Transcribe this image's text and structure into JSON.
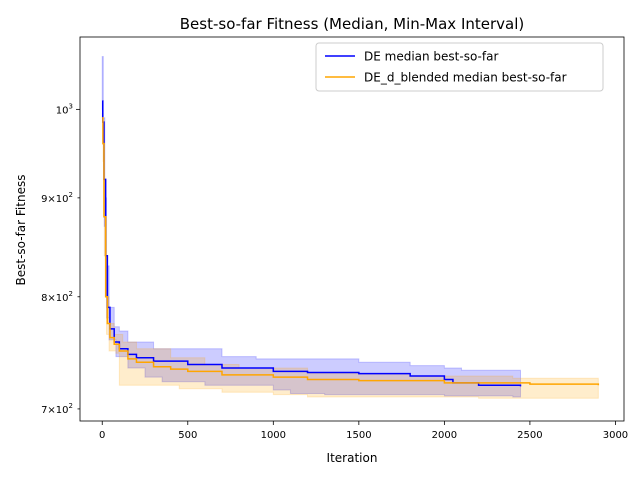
{
  "chart_data": {
    "type": "line",
    "title": "Best-so-far Fitness (Median, Min-Max Interval)",
    "xlabel": "Iteration",
    "ylabel": "Best-so-far Fitness",
    "xlim": [
      -130,
      3050
    ],
    "ylim": [
      690,
      1090
    ],
    "yscale": "log",
    "grid": false,
    "legend_position": "top-right",
    "x_ticks": [
      0,
      500,
      1000,
      1500,
      2000,
      2500,
      3000
    ],
    "x_tick_labels": [
      "0",
      "500",
      "1000",
      "1500",
      "2000",
      "2500",
      "3000"
    ],
    "y_ticks": [
      700,
      800,
      900,
      1000
    ],
    "y_tick_labels": [
      {
        "base": "7",
        "mid": "×",
        "pow": "10",
        "exp": "2"
      },
      {
        "base": "8",
        "mid": "×",
        "pow": "10",
        "exp": "2"
      },
      {
        "base": "9",
        "mid": "×",
        "pow": "10",
        "exp": "2"
      },
      {
        "base": "",
        "mid": "",
        "pow": "10",
        "exp": "3"
      }
    ],
    "series": [
      {
        "name": "DE median best-so-far",
        "color": "#0000ff",
        "fill": "#0000ff",
        "median": [
          [
            0,
            1010
          ],
          [
            3,
            985
          ],
          [
            10,
            920
          ],
          [
            20,
            840
          ],
          [
            30,
            790
          ],
          [
            45,
            770
          ],
          [
            70,
            758
          ],
          [
            100,
            752
          ],
          [
            150,
            747
          ],
          [
            200,
            744
          ],
          [
            300,
            741
          ],
          [
            500,
            738
          ],
          [
            700,
            735
          ],
          [
            1000,
            732
          ],
          [
            1200,
            731
          ],
          [
            1500,
            730
          ],
          [
            1800,
            728
          ],
          [
            2000,
            725
          ],
          [
            2050,
            722
          ],
          [
            2200,
            720
          ],
          [
            2445,
            719
          ]
        ],
        "upper": [
          [
            0,
            1065
          ],
          [
            5,
            1065
          ],
          [
            6,
            990
          ],
          [
            15,
            900
          ],
          [
            25,
            830
          ],
          [
            40,
            790
          ],
          [
            70,
            772
          ],
          [
            100,
            768
          ],
          [
            150,
            758
          ],
          [
            300,
            752
          ],
          [
            700,
            745
          ],
          [
            900,
            743
          ],
          [
            1500,
            740
          ],
          [
            1800,
            737
          ],
          [
            2000,
            735
          ],
          [
            2100,
            733
          ],
          [
            2445,
            733
          ]
        ],
        "lower": [
          [
            0,
            1000
          ],
          [
            5,
            960
          ],
          [
            12,
            870
          ],
          [
            25,
            780
          ],
          [
            40,
            760
          ],
          [
            80,
            745
          ],
          [
            150,
            735
          ],
          [
            250,
            727
          ],
          [
            350,
            723
          ],
          [
            600,
            720
          ],
          [
            1000,
            716
          ],
          [
            1100,
            713
          ],
          [
            1300,
            712
          ],
          [
            1600,
            712
          ],
          [
            2000,
            711
          ],
          [
            2400,
            710
          ],
          [
            2445,
            710
          ]
        ]
      },
      {
        "name": "DE_d_blended median best-so-far",
        "color": "#ffa500",
        "fill": "#ffa500",
        "median": [
          [
            0,
            990
          ],
          [
            4,
            960
          ],
          [
            10,
            880
          ],
          [
            20,
            800
          ],
          [
            30,
            775
          ],
          [
            45,
            762
          ],
          [
            70,
            756
          ],
          [
            100,
            750
          ],
          [
            150,
            743
          ],
          [
            200,
            740
          ],
          [
            300,
            736
          ],
          [
            400,
            734
          ],
          [
            500,
            732
          ],
          [
            700,
            729
          ],
          [
            1000,
            727
          ],
          [
            1200,
            725
          ],
          [
            1500,
            724
          ],
          [
            2000,
            722
          ],
          [
            2500,
            721
          ],
          [
            2900,
            720
          ]
        ],
        "upper": [
          [
            0,
            995
          ],
          [
            5,
            985
          ],
          [
            12,
            880
          ],
          [
            25,
            800
          ],
          [
            40,
            775
          ],
          [
            70,
            765
          ],
          [
            120,
            758
          ],
          [
            200,
            752
          ],
          [
            400,
            744
          ],
          [
            600,
            738
          ],
          [
            800,
            735
          ],
          [
            1200,
            730
          ],
          [
            1800,
            728
          ],
          [
            2400,
            726
          ],
          [
            2900,
            726
          ]
        ],
        "lower": [
          [
            0,
            990
          ],
          [
            5,
            940
          ],
          [
            12,
            840
          ],
          [
            25,
            765
          ],
          [
            40,
            750
          ],
          [
            80,
            748
          ],
          [
            100,
            720
          ],
          [
            300,
            720
          ],
          [
            450,
            717
          ],
          [
            700,
            714
          ],
          [
            1000,
            712
          ],
          [
            1200,
            710
          ],
          [
            1600,
            710
          ],
          [
            2200,
            709
          ],
          [
            2900,
            709
          ]
        ]
      }
    ]
  }
}
